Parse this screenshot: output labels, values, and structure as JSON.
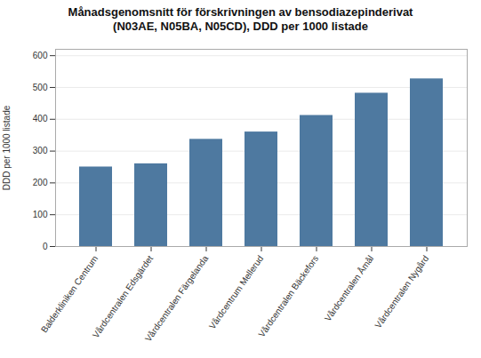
{
  "chart_data": {
    "type": "bar",
    "title": "Månadsgenomsnitt för förskrivningen av bensodiazepinderivat\n(N03AE, N05BA, N05CD), DDD per 1000 listade",
    "categories": [
      "Balderkliniken Centrum",
      "Vårdcentralen Edsgärdet",
      "Vårdcentralen Färgelanda",
      "Vårdcentrum Mellerud",
      "Vårdcentralen Bäckefors",
      "Vårdcentralen Åmål",
      "Vårdcentralen Nygård"
    ],
    "values": [
      250,
      260,
      337,
      360,
      412,
      482,
      527
    ],
    "color": "#4e79a0",
    "ylabel": "DDD per 1000 listade",
    "ylim": [
      0,
      620
    ],
    "yticks": [
      0,
      100,
      200,
      300,
      400,
      500,
      600
    ],
    "grid": true
  }
}
